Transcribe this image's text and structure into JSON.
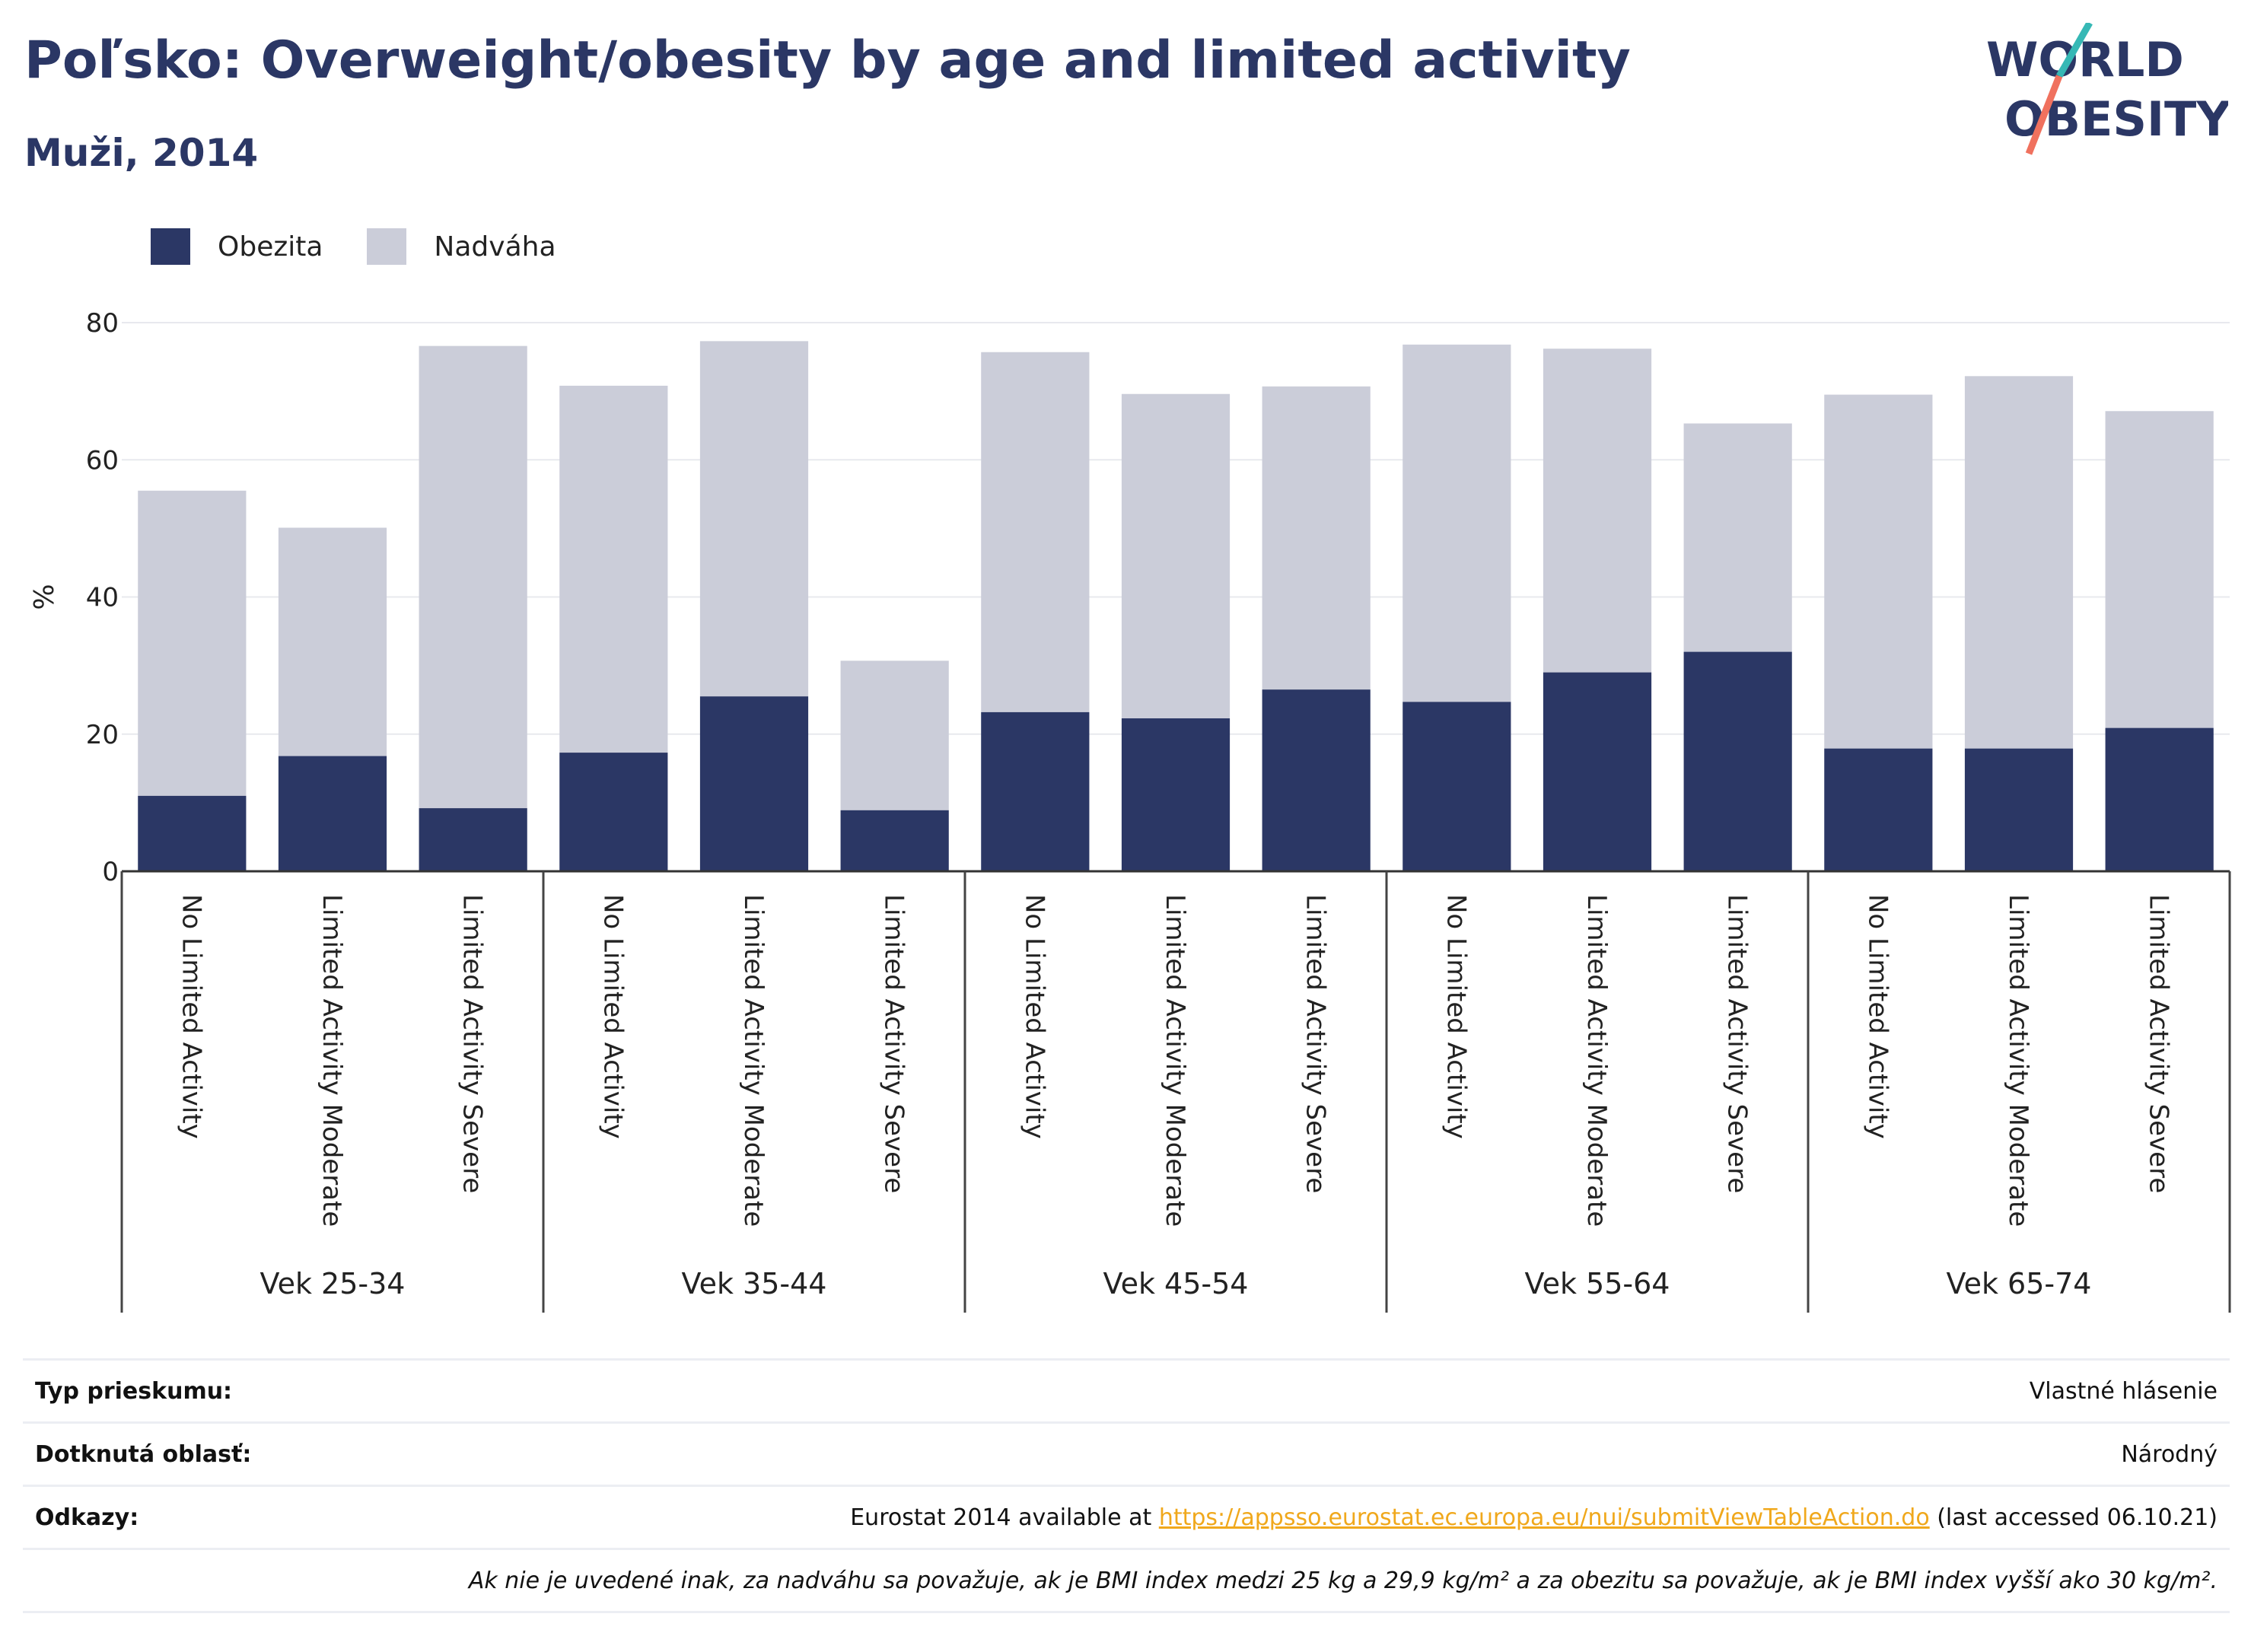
{
  "header": {
    "title": "Poľsko: Overweight/obesity by age and limited activity",
    "subtitle": "Muži, 2014",
    "logo_line1": "WORLD",
    "logo_line2": "OBESITY"
  },
  "legend": {
    "obesity": "Obezita",
    "overweight": "Nadváha"
  },
  "colors": {
    "obesity": "#2b3765",
    "overweight": "#cbcdd9",
    "accent_teal": "#36b8b5",
    "accent_coral": "#f0715e"
  },
  "chart_data": {
    "type": "bar",
    "stacked": true,
    "ylabel": "%",
    "ylim": [
      0,
      80
    ],
    "yticks": [
      0,
      20,
      40,
      60,
      80
    ],
    "grid": true,
    "legend_position": "top-left",
    "groups": [
      "Vek 25-34",
      "Vek 35-44",
      "Vek 45-54",
      "Vek 55-64",
      "Vek 65-74"
    ],
    "categories": [
      "No Limited Activity",
      "Limited Activity Moderate",
      "Limited Activity Severe",
      "No Limited Activity",
      "Limited Activity Moderate",
      "Limited Activity Severe",
      "No Limited Activity",
      "Limited Activity Moderate",
      "Limited Activity Severe",
      "No Limited Activity",
      "Limited Activity Moderate",
      "Limited Activity Severe",
      "No Limited Activity",
      "Limited Activity Moderate",
      "Limited Activity Severe"
    ],
    "series": [
      {
        "name": "Obezita",
        "values": [
          11,
          16.8,
          9.2,
          17.3,
          25.5,
          8.9,
          23.2,
          22.3,
          26.5,
          24.7,
          29,
          32,
          17.9,
          17.9,
          20.9
        ]
      },
      {
        "name": "Nadváha",
        "values": [
          44.5,
          33.3,
          67.4,
          53.5,
          51.8,
          21.8,
          52.5,
          47.3,
          44.2,
          52.1,
          47.2,
          33.3,
          51.6,
          54.3,
          46.2
        ]
      }
    ]
  },
  "footer": {
    "survey_label": "Typ prieskumu:",
    "survey_value": "Vlastné hlásenie",
    "area_label": "Dotknutá oblasť:",
    "area_value": "Národný",
    "refs_label": "Odkazy:",
    "refs_prefix": "Eurostat 2014 available at ",
    "refs_link": "https://appsso.eurostat.ec.europa.eu/nui/submitViewTableAction.do",
    "refs_suffix": " (last accessed 06.10.21)",
    "note": "Ak nie je uvedené inak, za nadváhu sa považuje, ak je BMI index medzi 25 kg a 29,9 kg/m² a za obezitu sa považuje, ak je BMI index vyšší ako 30 kg/m²."
  }
}
